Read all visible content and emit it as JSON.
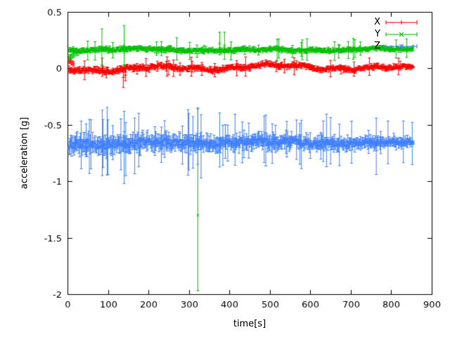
{
  "page": {
    "background": "#ffffff",
    "frame_color": "#000000",
    "text_color": "#000000"
  },
  "chart_data": {
    "type": "scatter",
    "subtype": "errorbars",
    "title": "",
    "xlabel": "time[s]",
    "ylabel": "acceleration [g]",
    "xlim": [
      0,
      900
    ],
    "ylim": [
      -2,
      0.5
    ],
    "x_ticks": [
      0,
      100,
      200,
      300,
      400,
      500,
      600,
      700,
      800,
      900
    ],
    "y_ticks": [
      0.5,
      0,
      -0.5,
      -1,
      -1.5,
      -2
    ],
    "grid": false,
    "legend_position": "top-right-inside",
    "series": [
      {
        "name": "X",
        "color": "#ff0000",
        "marker": "plus",
        "baseline": 0.005,
        "wander": 0.03,
        "noise": 0.013,
        "err": 0.02,
        "big_err_prob": 0.07,
        "big_err_scale": 4.5,
        "t_start": 4,
        "t_end": 855,
        "t_step": 2,
        "seed": 11,
        "taper": [
          1.1,
          0.85
        ],
        "anomalies": [
          {
            "x": 4,
            "y": 0.065,
            "err_minus": 0.02,
            "err_plus": 0.02
          },
          {
            "x": 7,
            "y": 0.06,
            "err_minus": 0.02,
            "err_plus": 0.02
          },
          {
            "x": 11,
            "y": 0.05,
            "err_minus": 0.02,
            "err_plus": 0.02
          },
          {
            "x": 15,
            "y": 0.04,
            "err_minus": 0.02,
            "err_plus": 0.02
          },
          {
            "x": 86,
            "y": 0.02,
            "err_minus": 0.09,
            "err_plus": 0.07
          },
          {
            "x": 138,
            "y": -0.08,
            "err_minus": 0.09,
            "err_plus": 0.06
          },
          {
            "x": 143,
            "y": -0.06,
            "err_minus": 0.05,
            "err_plus": 0.05
          }
        ]
      },
      {
        "name": "Y",
        "color": "#00c000",
        "marker": "cross",
        "baseline": 0.165,
        "wander": 0.012,
        "noise": 0.011,
        "err": 0.018,
        "big_err_prob": 0.05,
        "big_err_scale": 6,
        "t_start": 4,
        "t_end": 855,
        "t_step": 2,
        "seed": 22,
        "taper": [
          1.05,
          0.9
        ],
        "anomalies": [
          {
            "x": 4,
            "y": 0.1,
            "err_minus": 0.02,
            "err_plus": 0.02
          },
          {
            "x": 8,
            "y": 0.105,
            "err_minus": 0.02,
            "err_plus": 0.02
          },
          {
            "x": 12,
            "y": 0.11,
            "err_minus": 0.02,
            "err_plus": 0.02
          },
          {
            "x": 16,
            "y": 0.12,
            "err_minus": 0.02,
            "err_plus": 0.02
          },
          {
            "x": 21,
            "y": 0.13,
            "err_minus": 0.02,
            "err_plus": 0.02
          },
          {
            "x": 26,
            "y": 0.14,
            "err_minus": 0.025,
            "err_plus": 0.025
          },
          {
            "x": 85,
            "y": 0.19,
            "err_minus": 0.16,
            "err_plus": 0.16
          },
          {
            "x": 140,
            "y": 0.2,
            "err_minus": 0.18,
            "err_plus": 0.18
          },
          {
            "x": 376,
            "y": 0.22,
            "err_minus": 0.1,
            "err_plus": 0.1
          },
          {
            "x": 388,
            "y": 0.2,
            "err_minus": 0.12,
            "err_plus": 0.12
          },
          {
            "x": 322,
            "y": -1.3,
            "err_minus": 0.67,
            "err_plus": 0.95
          }
        ]
      },
      {
        "name": "Z",
        "color": "#4080ff",
        "marker": "star",
        "baseline": -0.66,
        "wander": 0.018,
        "noise": 0.028,
        "err": 0.055,
        "big_err_prob": 0.11,
        "big_err_scale": 5,
        "t_start": 4,
        "t_end": 855,
        "t_step": 2,
        "seed": 33,
        "taper": [
          1.25,
          0.72
        ],
        "anomalies": [
          {
            "x": 86,
            "y": -0.65,
            "err_minus": 0.3,
            "err_plus": 0.28
          },
          {
            "x": 140,
            "y": -0.68,
            "err_minus": 0.34,
            "err_plus": 0.3
          },
          {
            "x": 144,
            "y": -0.7,
            "err_minus": 0.25,
            "err_plus": 0.22
          },
          {
            "x": 300,
            "y": -0.66,
            "err_minus": 0.24,
            "err_plus": 0.26
          },
          {
            "x": 322,
            "y": -0.63,
            "err_minus": 0.22,
            "err_plus": 0.27
          },
          {
            "x": 330,
            "y": -0.67,
            "err_minus": 0.3,
            "err_plus": 0.26
          },
          {
            "x": 763,
            "y": -0.66,
            "err_minus": 0.28,
            "err_plus": 0.22
          }
        ]
      }
    ]
  }
}
